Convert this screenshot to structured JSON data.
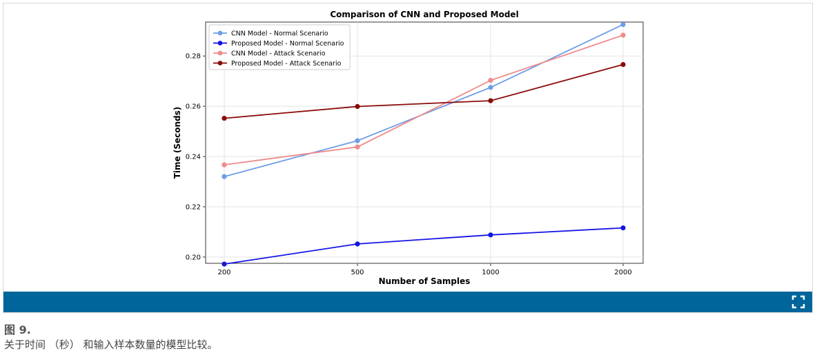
{
  "figure": {
    "label": "图 9.",
    "caption": "关于时间 （秒） 和输入样本数量的模型比较。",
    "expand_icon": "expand-icon"
  },
  "chart_data": {
    "type": "line",
    "title": "Comparison of CNN and Proposed Model",
    "xlabel": "Number of Samples",
    "ylabel": "Time (Seconds)",
    "categories": [
      "200",
      "500",
      "1000",
      "2000"
    ],
    "ylim": [
      0.1975,
      0.2935
    ],
    "yticks": [
      0.2,
      0.22,
      0.24,
      0.26,
      0.28
    ],
    "ytick_labels": [
      "0.20",
      "0.22",
      "0.24",
      "0.26",
      "0.28"
    ],
    "grid": true,
    "legend_position": "top-left",
    "series": [
      {
        "name": "CNN Model - Normal Scenario",
        "color": "#6e9de8",
        "values": [
          0.232,
          0.2463,
          0.2675,
          0.2925
        ]
      },
      {
        "name": "Proposed Model - Normal Scenario",
        "color": "#1414e6",
        "values": [
          0.1972,
          0.2052,
          0.2088,
          0.2116
        ]
      },
      {
        "name": "CNN Model - Attack Scenario",
        "color": "#f08a8a",
        "values": [
          0.2367,
          0.2438,
          0.2703,
          0.2883
        ]
      },
      {
        "name": "Proposed Model - Attack Scenario",
        "color": "#8b0a0a",
        "values": [
          0.2552,
          0.2599,
          0.2622,
          0.2766
        ]
      }
    ]
  }
}
